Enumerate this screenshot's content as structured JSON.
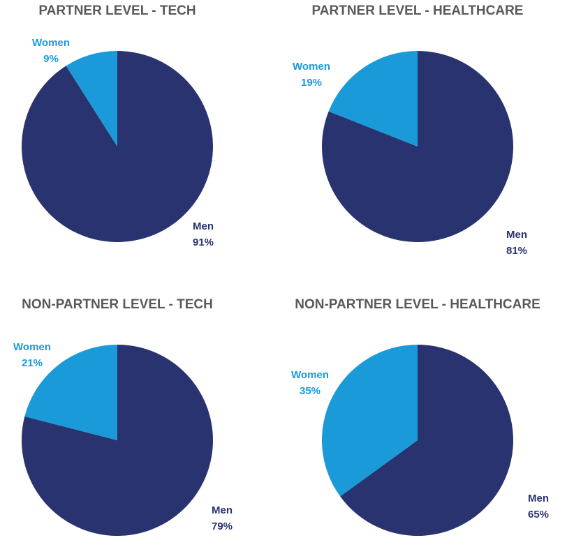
{
  "chart_data": [
    {
      "type": "pie",
      "title": "PARTNER LEVEL - TECH",
      "categories": [
        "Men",
        "Women"
      ],
      "values": [
        91,
        9
      ],
      "value_labels": [
        "91%",
        "9%"
      ],
      "colors": [
        "#283370",
        "#1a9ad9"
      ]
    },
    {
      "type": "pie",
      "title": "PARTNER LEVEL - HEALTHCARE",
      "categories": [
        "Men",
        "Women"
      ],
      "values": [
        81,
        19
      ],
      "value_labels": [
        "81%",
        "19%"
      ],
      "colors": [
        "#283370",
        "#1a9ad9"
      ]
    },
    {
      "type": "pie",
      "title": "NON-PARTNER LEVEL - TECH",
      "categories": [
        "Men",
        "Women"
      ],
      "values": [
        79,
        21
      ],
      "value_labels": [
        "79%",
        "21%"
      ],
      "colors": [
        "#283370",
        "#1a9ad9"
      ]
    },
    {
      "type": "pie",
      "title": "NON-PARTNER LEVEL - HEALTHCARE",
      "categories": [
        "Men",
        "Women"
      ],
      "values": [
        65,
        35
      ],
      "value_labels": [
        "65%",
        "35%"
      ],
      "colors": [
        "#283370",
        "#1a9ad9"
      ]
    }
  ]
}
